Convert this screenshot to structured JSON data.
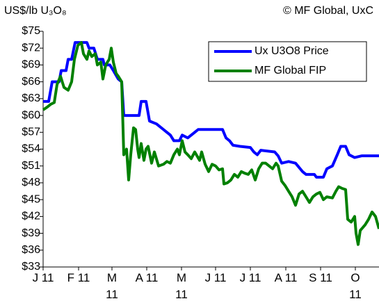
{
  "chart_data": {
    "type": "line",
    "title": "US$/lb U₃O₈",
    "subtitle": "© MF Global, UxC",
    "xlim": [
      0,
      9.66
    ],
    "xticks": [
      {
        "value": 0,
        "label": "J 11"
      },
      {
        "value": 1.02,
        "label": "F 11"
      },
      {
        "value": 1.98,
        "label": "M 11"
      },
      {
        "value": 2.98,
        "label": "A 11"
      },
      {
        "value": 3.98,
        "label": "M 11"
      },
      {
        "value": 4.96,
        "label": "J 11"
      },
      {
        "value": 5.96,
        "label": "J 11"
      },
      {
        "value": 6.98,
        "label": "A 11"
      },
      {
        "value": 7.98,
        "label": "S 11"
      },
      {
        "value": 8.98,
        "label": "O 11"
      }
    ],
    "ylim": [
      33,
      75
    ],
    "yticks": [
      {
        "value": 33,
        "label": "$33"
      },
      {
        "value": 36,
        "label": "$36"
      },
      {
        "value": 39,
        "label": "$39"
      },
      {
        "value": 42,
        "label": "$42"
      },
      {
        "value": 45,
        "label": "$45"
      },
      {
        "value": 48,
        "label": "$48"
      },
      {
        "value": 51,
        "label": "$51"
      },
      {
        "value": 54,
        "label": "$54"
      },
      {
        "value": 57,
        "label": "$57"
      },
      {
        "value": 60,
        "label": "$60"
      },
      {
        "value": 63,
        "label": "$63"
      },
      {
        "value": 66,
        "label": "$66"
      },
      {
        "value": 69,
        "label": "$69"
      },
      {
        "value": 72,
        "label": "$72"
      },
      {
        "value": 75,
        "label": "$75"
      }
    ],
    "legend": "top-right",
    "series": [
      {
        "name": "Ux U3O8 Price",
        "color": "#0000ff",
        "x": [
          0,
          0.16,
          0.26,
          0.46,
          0.52,
          0.66,
          0.72,
          0.82,
          0.92,
          1.26,
          1.32,
          1.46,
          1.56,
          1.72,
          1.76,
          1.92,
          2.02,
          2.16,
          2.26,
          2.32,
          2.76,
          2.82,
          2.96,
          3.06,
          3.26,
          3.46,
          3.56,
          3.66,
          3.76,
          3.92,
          4.0,
          4.16,
          4.36,
          4.46,
          5.16,
          5.26,
          5.36,
          5.46,
          5.66,
          5.96,
          6.06,
          6.16,
          6.26,
          6.66,
          6.76,
          6.86,
          7.06,
          7.26,
          7.46,
          7.56,
          7.8,
          7.86,
          8.06,
          8.16,
          8.32,
          8.46,
          8.56,
          8.7,
          8.8,
          8.96,
          9.16,
          9.66
        ],
        "values": [
          62.5,
          62.5,
          66,
          66,
          68,
          68,
          70,
          70,
          73,
          73,
          72,
          72,
          70,
          70,
          69,
          69,
          68,
          66.5,
          66,
          60,
          60,
          62.5,
          62.5,
          59,
          58.5,
          57.5,
          57,
          56.5,
          55.5,
          55.5,
          56.5,
          56,
          57,
          57.5,
          57.5,
          56,
          55.5,
          54.7,
          54.5,
          54.3,
          53.5,
          53,
          53.8,
          53.5,
          52.8,
          51.5,
          51.8,
          51.5,
          50,
          49.5,
          49.5,
          49,
          49,
          50.5,
          51,
          53,
          54.5,
          54.5,
          53,
          52.5,
          52.8,
          52.8
        ]
      },
      {
        "name": "MF Global FIP",
        "color": "#008000",
        "x": [
          0,
          0.12,
          0.22,
          0.32,
          0.4,
          0.5,
          0.6,
          0.72,
          0.82,
          0.9,
          1.0,
          1.1,
          1.16,
          1.26,
          1.32,
          1.4,
          1.5,
          1.56,
          1.66,
          1.72,
          1.8,
          1.9,
          1.96,
          2.02,
          2.1,
          2.16,
          2.26,
          2.32,
          2.4,
          2.46,
          2.52,
          2.6,
          2.66,
          2.72,
          2.76,
          2.82,
          2.9,
          2.96,
          3.02,
          3.12,
          3.2,
          3.32,
          3.46,
          3.56,
          3.66,
          3.76,
          3.86,
          3.92,
          4.0,
          4.08,
          4.16,
          4.26,
          4.36,
          4.5,
          4.56,
          4.66,
          4.76,
          4.86,
          4.96,
          5.06,
          5.16,
          5.2,
          5.3,
          5.4,
          5.5,
          5.6,
          5.7,
          5.8,
          5.9,
          6.0,
          6.1,
          6.2,
          6.3,
          6.4,
          6.5,
          6.6,
          6.7,
          6.76,
          6.86,
          6.96,
          7.06,
          7.16,
          7.26,
          7.36,
          7.46,
          7.56,
          7.66,
          7.76,
          7.86,
          7.96,
          8.06,
          8.16,
          8.32,
          8.42,
          8.5,
          8.6,
          8.7,
          8.76,
          8.86,
          8.96,
          9.0,
          9.06,
          9.12,
          9.26,
          9.36,
          9.46,
          9.56,
          9.66
        ],
        "values": [
          61,
          61.5,
          62,
          62.3,
          65.5,
          67,
          65,
          64.5,
          66,
          70,
          72.5,
          73,
          71,
          70,
          71.5,
          70.5,
          71,
          69,
          69.5,
          66.5,
          69,
          70,
          72,
          69.5,
          67.5,
          67,
          66,
          53,
          54,
          48.5,
          53,
          57.8,
          57.5,
          54,
          52.5,
          55,
          52,
          54,
          54.5,
          51.5,
          53.5,
          51,
          51.3,
          51.8,
          51.5,
          53,
          54,
          53,
          55.5,
          53.5,
          53,
          52.3,
          53.5,
          52,
          53.5,
          51.3,
          50,
          51.3,
          51,
          50.3,
          50.5,
          47.8,
          48,
          48.5,
          49.5,
          49,
          50,
          49.7,
          49.5,
          50.3,
          48.5,
          50.5,
          51.5,
          51.5,
          51,
          50.5,
          51.5,
          51,
          48.3,
          47.5,
          46.5,
          45.5,
          44,
          46,
          46.5,
          45.5,
          44.5,
          45.5,
          46,
          46.3,
          45,
          45.5,
          45.3,
          46.5,
          47.3,
          47,
          46.8,
          41.5,
          41,
          42,
          39,
          37,
          39.5,
          40.5,
          41.5,
          42.8,
          42,
          39.8
        ]
      }
    ]
  }
}
